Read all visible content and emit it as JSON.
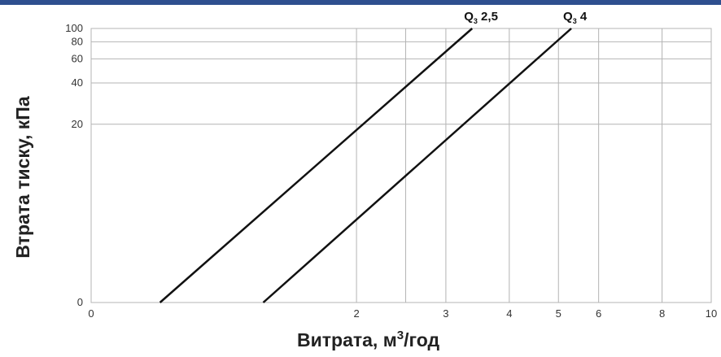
{
  "chart_data": {
    "type": "line",
    "title": "",
    "xlabel": "Витрата, м",
    "xlabel_sup": "3",
    "xlabel_suffix": "/год",
    "ylabel": "Втрата тиску, кПа",
    "x_scale": "log",
    "y_scale": "log",
    "grid": true,
    "x_ticks": [
      {
        "value": 0.6,
        "label": "0"
      },
      {
        "value": 2,
        "label": "2"
      },
      {
        "value": 3,
        "label": "3"
      },
      {
        "value": 4,
        "label": "4"
      },
      {
        "value": 5,
        "label": "5"
      },
      {
        "value": 6,
        "label": "6"
      },
      {
        "value": 8,
        "label": "8"
      },
      {
        "value": 10,
        "label": "10"
      }
    ],
    "x_gridlines": [
      2,
      2.5,
      3,
      4,
      5,
      6,
      8,
      10
    ],
    "y_ticks": [
      {
        "value": 1,
        "label": "0"
      },
      {
        "value": 20,
        "label": "20"
      },
      {
        "value": 40,
        "label": "40"
      },
      {
        "value": 60,
        "label": "60"
      },
      {
        "value": 80,
        "label": "80"
      },
      {
        "value": 100,
        "label": "100"
      }
    ],
    "xlim": [
      0.6,
      10
    ],
    "ylim": [
      1,
      100
    ],
    "series": [
      {
        "name": "Q3 2,5",
        "label_main": "Q",
        "label_sub": "3",
        "label_rest": " 2,5",
        "x": [
          0.82,
          3.38
        ],
        "y": [
          1,
          100
        ]
      },
      {
        "name": "Q3 4",
        "label_main": "Q",
        "label_sub": "3",
        "label_rest": " 4",
        "x": [
          1.31,
          5.3
        ],
        "y": [
          1,
          100
        ]
      }
    ],
    "line_color": "#111111",
    "grid_color": "#b4b4b4"
  }
}
